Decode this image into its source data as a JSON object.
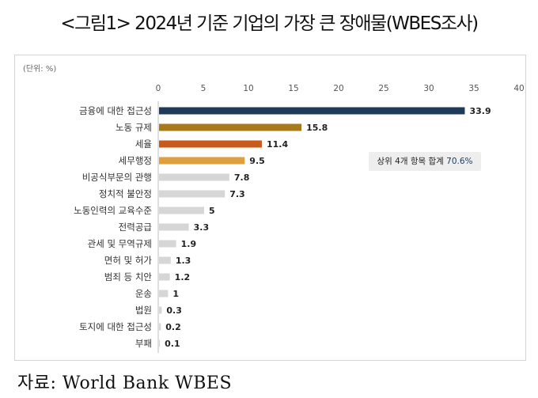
{
  "page": {
    "title": "<그림1> 2024년 기준 기업의 가장 큰 장애물(WBES조사)",
    "unit_label": "(단위: %)",
    "callout_text": "상위 4개 항목 합계",
    "callout_value": "70.6%",
    "source": "자료: World Bank WBES"
  },
  "chart_data": {
    "type": "bar",
    "orientation": "horizontal",
    "categories": [
      "금융에 대한 접근성",
      "노동 규제",
      "세율",
      "세무행정",
      "비공식부문의 관행",
      "정치적 불안정",
      "노동인력의 교육수준",
      "전력공급",
      "관세 및 무역규제",
      "면허 및 허가",
      "범죄 등 치안",
      "운송",
      "법원",
      "토지에 대한 접근성",
      "부패"
    ],
    "values": [
      33.9,
      15.8,
      11.4,
      9.5,
      7.8,
      7.3,
      5,
      3.3,
      1.9,
      1.3,
      1.2,
      1,
      0.3,
      0.2,
      0.1
    ],
    "value_labels": [
      "33.9",
      "15.8",
      "11.4",
      "9.5",
      "7.8",
      "7.3",
      "5",
      "3.3",
      "1.9",
      "1.3",
      "1.2",
      "1",
      "0.3",
      "0.2",
      "0.1"
    ],
    "colors": [
      "#1f3b5a",
      "#a87a1c",
      "#c85a1c",
      "#e09f3e",
      "#d6d6d6",
      "#d6d6d6",
      "#d6d6d6",
      "#d6d6d6",
      "#d6d6d6",
      "#d6d6d6",
      "#d6d6d6",
      "#d6d6d6",
      "#d6d6d6",
      "#d6d6d6",
      "#d6d6d6"
    ],
    "xlim": [
      0,
      40
    ],
    "xticks": [
      0,
      5,
      10,
      15,
      20,
      25,
      30,
      35,
      40
    ],
    "xtick_labels": [
      "0",
      "5",
      "10",
      "15",
      "20",
      "25",
      "30",
      "35",
      "40"
    ],
    "axis_position": "top",
    "grid": false,
    "legend": "none"
  }
}
